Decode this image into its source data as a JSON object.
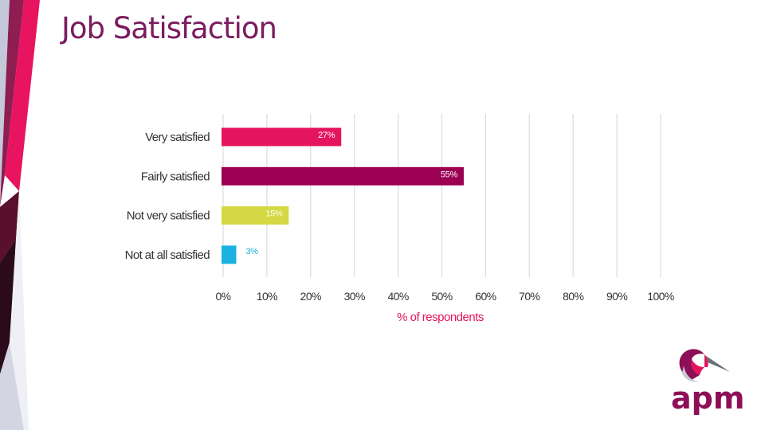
{
  "slide": {
    "title": "Job Satisfaction"
  },
  "chart_data": {
    "type": "bar",
    "orientation": "horizontal",
    "categories": [
      "Very satisfied",
      "Fairly satisfied",
      "Not very satisfied",
      "Not at all satisfied"
    ],
    "values": [
      27,
      55,
      15,
      3
    ],
    "data_labels": [
      "27%",
      "55%",
      "15%",
      "3%"
    ],
    "bar_colors": [
      "#e4145f",
      "#9b0052",
      "#d4d842",
      "#1ab2e0"
    ],
    "label_colors": [
      "#ffffff",
      "#ffffff",
      "#ffffff",
      "#1ab2e0"
    ],
    "label_inside": [
      true,
      true,
      true,
      false
    ],
    "xlim": [
      0,
      100
    ],
    "xticks": [
      0,
      10,
      20,
      30,
      40,
      50,
      60,
      70,
      80,
      90,
      100
    ],
    "xtick_labels": [
      "0%",
      "10%",
      "20%",
      "30%",
      "40%",
      "50%",
      "60%",
      "70%",
      "80%",
      "90%",
      "100%"
    ],
    "xlabel": "% of respondents",
    "ylabel": "",
    "grid": "vertical",
    "legend": "none"
  },
  "colors": {
    "title": "#7a1c5e",
    "accent": "#e4145f",
    "grid": "#d9dce3",
    "logo": "#8c0f57"
  },
  "logo": {
    "text": "apm",
    "icon": "heron-icon"
  }
}
